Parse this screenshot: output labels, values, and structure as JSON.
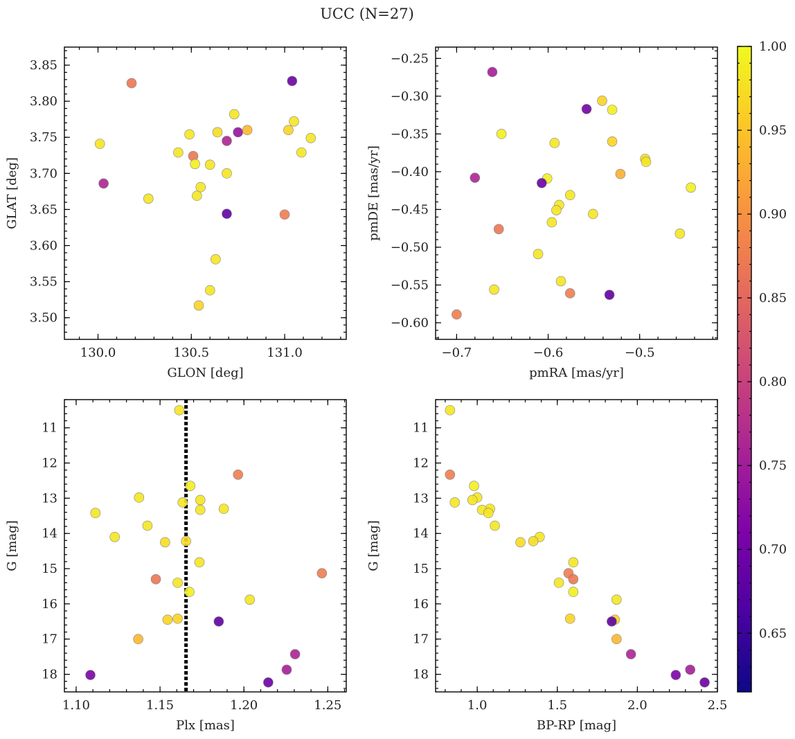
{
  "figure": {
    "title": "UCC (N=27)"
  },
  "colorbar": {
    "range": [
      0.615,
      1.0
    ],
    "ticks": [
      0.65,
      0.7,
      0.75,
      0.8,
      0.85,
      0.9,
      0.95,
      1.0
    ],
    "tick_labels": [
      "0.65",
      "0.70",
      "0.75",
      "0.80",
      "0.85",
      "0.90",
      "0.95",
      "1.00"
    ],
    "colormap": "plasma"
  },
  "chart_data": [
    {
      "type": "scatter",
      "id": "glon-glat",
      "xlabel": "GLON [deg]",
      "ylabel": "GLAT [deg]",
      "xlim": [
        129.82,
        131.33
      ],
      "ylim": [
        3.47,
        3.875
      ],
      "xticks": [
        130.0,
        130.5,
        131.0
      ],
      "xtick_labels": [
        "130.0",
        "130.5",
        "131.0"
      ],
      "yticks": [
        3.5,
        3.55,
        3.6,
        3.65,
        3.7,
        3.75,
        3.8,
        3.85
      ],
      "ytick_labels": [
        "3.50",
        "3.55",
        "3.60",
        "3.65",
        "3.70",
        "3.75",
        "3.80",
        "3.85"
      ],
      "invert_x": false,
      "invert_y": false,
      "points": [
        {
          "x": 130.01,
          "y": 3.741,
          "c": 0.98
        },
        {
          "x": 130.03,
          "y": 3.686,
          "c": 0.73
        },
        {
          "x": 130.18,
          "y": 3.825,
          "c": 0.85
        },
        {
          "x": 130.27,
          "y": 3.665,
          "c": 0.98
        },
        {
          "x": 130.43,
          "y": 3.729,
          "c": 0.98
        },
        {
          "x": 130.49,
          "y": 3.754,
          "c": 0.98
        },
        {
          "x": 130.51,
          "y": 3.724,
          "c": 0.85
        },
        {
          "x": 130.52,
          "y": 3.713,
          "c": 0.99
        },
        {
          "x": 130.53,
          "y": 3.669,
          "c": 0.98
        },
        {
          "x": 130.55,
          "y": 3.681,
          "c": 0.98
        },
        {
          "x": 130.54,
          "y": 3.517,
          "c": 0.96
        },
        {
          "x": 130.6,
          "y": 3.538,
          "c": 0.98
        },
        {
          "x": 130.6,
          "y": 3.712,
          "c": 0.98
        },
        {
          "x": 130.63,
          "y": 3.581,
          "c": 0.98
        },
        {
          "x": 130.64,
          "y": 3.757,
          "c": 0.97
        },
        {
          "x": 130.69,
          "y": 3.745,
          "c": 0.73
        },
        {
          "x": 130.69,
          "y": 3.644,
          "c": 0.64
        },
        {
          "x": 130.69,
          "y": 3.7,
          "c": 0.98
        },
        {
          "x": 130.73,
          "y": 3.782,
          "c": 0.98
        },
        {
          "x": 130.75,
          "y": 3.757,
          "c": 0.7
        },
        {
          "x": 130.8,
          "y": 3.76,
          "c": 0.93
        },
        {
          "x": 131.0,
          "y": 3.643,
          "c": 0.86
        },
        {
          "x": 131.02,
          "y": 3.76,
          "c": 0.96
        },
        {
          "x": 131.04,
          "y": 3.828,
          "c": 0.65
        },
        {
          "x": 131.05,
          "y": 3.772,
          "c": 0.98
        },
        {
          "x": 131.09,
          "y": 3.729,
          "c": 0.98
        },
        {
          "x": 131.14,
          "y": 3.749,
          "c": 0.98
        }
      ]
    },
    {
      "type": "scatter",
      "id": "pmra-pmde",
      "xlabel": "pmRA [mas/yr]",
      "ylabel": "pmDE [mas/yr]",
      "xlim": [
        -0.723,
        -0.415
      ],
      "ylim": [
        -0.622,
        -0.235
      ],
      "xticks": [
        -0.7,
        -0.6,
        -0.5
      ],
      "xtick_labels": [
        "−0.7",
        "−0.6",
        "−0.5"
      ],
      "yticks": [
        -0.6,
        -0.55,
        -0.5,
        -0.45,
        -0.4,
        -0.35,
        -0.3,
        -0.25
      ],
      "ytick_labels": [
        "−0.60",
        "−0.55",
        "−0.50",
        "−0.45",
        "−0.40",
        "−0.35",
        "−0.30",
        "−0.25"
      ],
      "invert_x": false,
      "invert_y": false,
      "points": [
        {
          "x": -0.661,
          "y": -0.268,
          "c": 0.72
        },
        {
          "x": -0.558,
          "y": -0.317,
          "c": 0.66
        },
        {
          "x": -0.541,
          "y": -0.306,
          "c": 0.96
        },
        {
          "x": -0.53,
          "y": -0.318,
          "c": 0.99
        },
        {
          "x": -0.651,
          "y": -0.35,
          "c": 0.99
        },
        {
          "x": -0.593,
          "y": -0.362,
          "c": 0.98
        },
        {
          "x": -0.53,
          "y": -0.36,
          "c": 0.96
        },
        {
          "x": -0.494,
          "y": -0.383,
          "c": 0.97
        },
        {
          "x": -0.493,
          "y": -0.387,
          "c": 0.98
        },
        {
          "x": -0.521,
          "y": -0.403,
          "c": 0.92
        },
        {
          "x": -0.68,
          "y": -0.408,
          "c": 0.73
        },
        {
          "x": -0.601,
          "y": -0.409,
          "c": 0.99
        },
        {
          "x": -0.607,
          "y": -0.415,
          "c": 0.65
        },
        {
          "x": -0.444,
          "y": -0.421,
          "c": 0.99
        },
        {
          "x": -0.576,
          "y": -0.431,
          "c": 0.98
        },
        {
          "x": -0.588,
          "y": -0.444,
          "c": 0.98
        },
        {
          "x": -0.591,
          "y": -0.451,
          "c": 0.98
        },
        {
          "x": -0.551,
          "y": -0.456,
          "c": 0.98
        },
        {
          "x": -0.596,
          "y": -0.467,
          "c": 0.98
        },
        {
          "x": -0.654,
          "y": -0.476,
          "c": 0.85
        },
        {
          "x": -0.456,
          "y": -0.482,
          "c": 0.98
        },
        {
          "x": -0.611,
          "y": -0.509,
          "c": 0.98
        },
        {
          "x": -0.586,
          "y": -0.545,
          "c": 0.98
        },
        {
          "x": -0.659,
          "y": -0.556,
          "c": 0.98
        },
        {
          "x": -0.576,
          "y": -0.561,
          "c": 0.86
        },
        {
          "x": -0.533,
          "y": -0.563,
          "c": 0.64
        },
        {
          "x": -0.7,
          "y": -0.589,
          "c": 0.86
        }
      ]
    },
    {
      "type": "scatter",
      "id": "plx-g",
      "xlabel": "Plx [mas]",
      "ylabel": "G [mag]",
      "xlim": [
        1.093,
        1.261
      ],
      "ylim": [
        18.5,
        10.2
      ],
      "xticks": [
        1.1,
        1.15,
        1.2,
        1.25
      ],
      "xtick_labels": [
        "1.10",
        "1.15",
        "1.20",
        "1.25"
      ],
      "yticks": [
        11,
        12,
        13,
        14,
        15,
        16,
        17,
        18
      ],
      "ytick_labels": [
        "11",
        "12",
        "13",
        "14",
        "15",
        "16",
        "17",
        "18"
      ],
      "invert_x": false,
      "invert_y": true,
      "vline": {
        "x": 1.1655,
        "style": "dotted"
      },
      "points": [
        {
          "x": 1.1615,
          "y": 10.5,
          "c": 0.98
        },
        {
          "x": 1.1965,
          "y": 12.33,
          "c": 0.86
        },
        {
          "x": 1.168,
          "y": 12.65,
          "c": 0.99
        },
        {
          "x": 1.1375,
          "y": 12.98,
          "c": 0.98
        },
        {
          "x": 1.174,
          "y": 13.05,
          "c": 0.98
        },
        {
          "x": 1.1635,
          "y": 13.12,
          "c": 0.98
        },
        {
          "x": 1.188,
          "y": 13.3,
          "c": 0.98
        },
        {
          "x": 1.174,
          "y": 13.33,
          "c": 0.98
        },
        {
          "x": 1.1115,
          "y": 13.42,
          "c": 0.98
        },
        {
          "x": 1.1425,
          "y": 13.78,
          "c": 0.98
        },
        {
          "x": 1.123,
          "y": 14.1,
          "c": 0.98
        },
        {
          "x": 1.1655,
          "y": 14.22,
          "c": 0.97
        },
        {
          "x": 1.153,
          "y": 14.25,
          "c": 0.97
        },
        {
          "x": 1.1735,
          "y": 14.82,
          "c": 0.98
        },
        {
          "x": 1.2465,
          "y": 15.13,
          "c": 0.86
        },
        {
          "x": 1.1475,
          "y": 15.3,
          "c": 0.85
        },
        {
          "x": 1.1605,
          "y": 15.4,
          "c": 0.98
        },
        {
          "x": 1.1675,
          "y": 15.66,
          "c": 0.99
        },
        {
          "x": 1.2035,
          "y": 15.88,
          "c": 0.98
        },
        {
          "x": 1.1605,
          "y": 16.42,
          "c": 0.96
        },
        {
          "x": 1.1545,
          "y": 16.45,
          "c": 0.96
        },
        {
          "x": 1.185,
          "y": 16.5,
          "c": 0.64
        },
        {
          "x": 1.137,
          "y": 17.0,
          "c": 0.93
        },
        {
          "x": 1.2305,
          "y": 17.43,
          "c": 0.73
        },
        {
          "x": 1.2255,
          "y": 17.87,
          "c": 0.72
        },
        {
          "x": 1.1085,
          "y": 18.02,
          "c": 0.67
        },
        {
          "x": 1.2145,
          "y": 18.23,
          "c": 0.65
        }
      ]
    },
    {
      "type": "scatter",
      "id": "bprp-g",
      "xlabel": "BP-RP [mag]",
      "ylabel": "G [mag]",
      "xlim": [
        0.74,
        2.5
      ],
      "ylim": [
        18.5,
        10.2
      ],
      "xticks": [
        1.0,
        1.5,
        2.0,
        2.5
      ],
      "xtick_labels": [
        "1.0",
        "1.5",
        "2.0",
        "2.5"
      ],
      "yticks": [
        11,
        12,
        13,
        14,
        15,
        16,
        17,
        18
      ],
      "ytick_labels": [
        "11",
        "12",
        "13",
        "14",
        "15",
        "16",
        "17",
        "18"
      ],
      "invert_x": false,
      "invert_y": true,
      "points": [
        {
          "x": 0.83,
          "y": 10.5,
          "c": 0.98
        },
        {
          "x": 0.83,
          "y": 12.33,
          "c": 0.86
        },
        {
          "x": 0.98,
          "y": 12.65,
          "c": 0.99
        },
        {
          "x": 1.0,
          "y": 12.98,
          "c": 0.98
        },
        {
          "x": 0.97,
          "y": 13.05,
          "c": 0.98
        },
        {
          "x": 0.86,
          "y": 13.12,
          "c": 0.98
        },
        {
          "x": 1.08,
          "y": 13.3,
          "c": 0.98
        },
        {
          "x": 1.03,
          "y": 13.33,
          "c": 0.98
        },
        {
          "x": 1.07,
          "y": 13.42,
          "c": 0.98
        },
        {
          "x": 1.11,
          "y": 13.78,
          "c": 0.98
        },
        {
          "x": 1.39,
          "y": 14.1,
          "c": 0.98
        },
        {
          "x": 1.35,
          "y": 14.22,
          "c": 0.97
        },
        {
          "x": 1.27,
          "y": 14.25,
          "c": 0.97
        },
        {
          "x": 1.6,
          "y": 14.82,
          "c": 0.98
        },
        {
          "x": 1.57,
          "y": 15.13,
          "c": 0.86
        },
        {
          "x": 1.6,
          "y": 15.3,
          "c": 0.85
        },
        {
          "x": 1.51,
          "y": 15.4,
          "c": 0.98
        },
        {
          "x": 1.6,
          "y": 15.66,
          "c": 0.99
        },
        {
          "x": 1.87,
          "y": 15.88,
          "c": 0.98
        },
        {
          "x": 1.58,
          "y": 16.42,
          "c": 0.96
        },
        {
          "x": 1.86,
          "y": 16.45,
          "c": 0.96
        },
        {
          "x": 1.84,
          "y": 16.5,
          "c": 0.64
        },
        {
          "x": 1.87,
          "y": 17.0,
          "c": 0.93
        },
        {
          "x": 1.96,
          "y": 17.43,
          "c": 0.73
        },
        {
          "x": 2.33,
          "y": 17.87,
          "c": 0.72
        },
        {
          "x": 2.24,
          "y": 18.02,
          "c": 0.67
        },
        {
          "x": 2.42,
          "y": 18.23,
          "c": 0.65
        }
      ]
    }
  ]
}
